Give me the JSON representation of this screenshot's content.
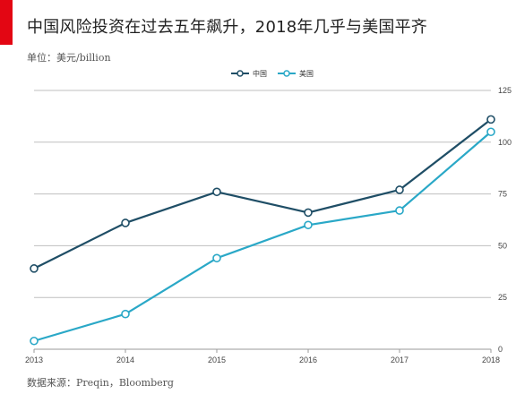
{
  "header": {
    "title": "中国风险投资在过去五年飙升，2018年几乎与美国平齐",
    "unit": "单位：美元/billion"
  },
  "footer": {
    "source": "数据来源：Preqin，Bloomberg"
  },
  "colors": {
    "accent": "#e30613",
    "china": "#1f4e66",
    "usa": "#2aa8c7",
    "grid": "#bfbfbf"
  },
  "chart_data": {
    "type": "line",
    "title": "中国风险投资在过去五年飙升，2018年几乎与美国平齐",
    "xlabel": "",
    "ylabel": "单位：美元/billion",
    "categories": [
      "2013",
      "2014",
      "2015",
      "2016",
      "2017",
      "2018"
    ],
    "ylim": [
      0,
      125
    ],
    "yticks": [
      0,
      25,
      50,
      75,
      100,
      125
    ],
    "grid": true,
    "legend_position": "top-center",
    "series": [
      {
        "name": "中国",
        "color": "#1f4e66",
        "values": [
          39,
          61,
          76,
          66,
          77,
          111
        ]
      },
      {
        "name": "美国",
        "color": "#2aa8c7",
        "values": [
          4,
          17,
          44,
          60,
          67,
          105
        ]
      }
    ]
  }
}
